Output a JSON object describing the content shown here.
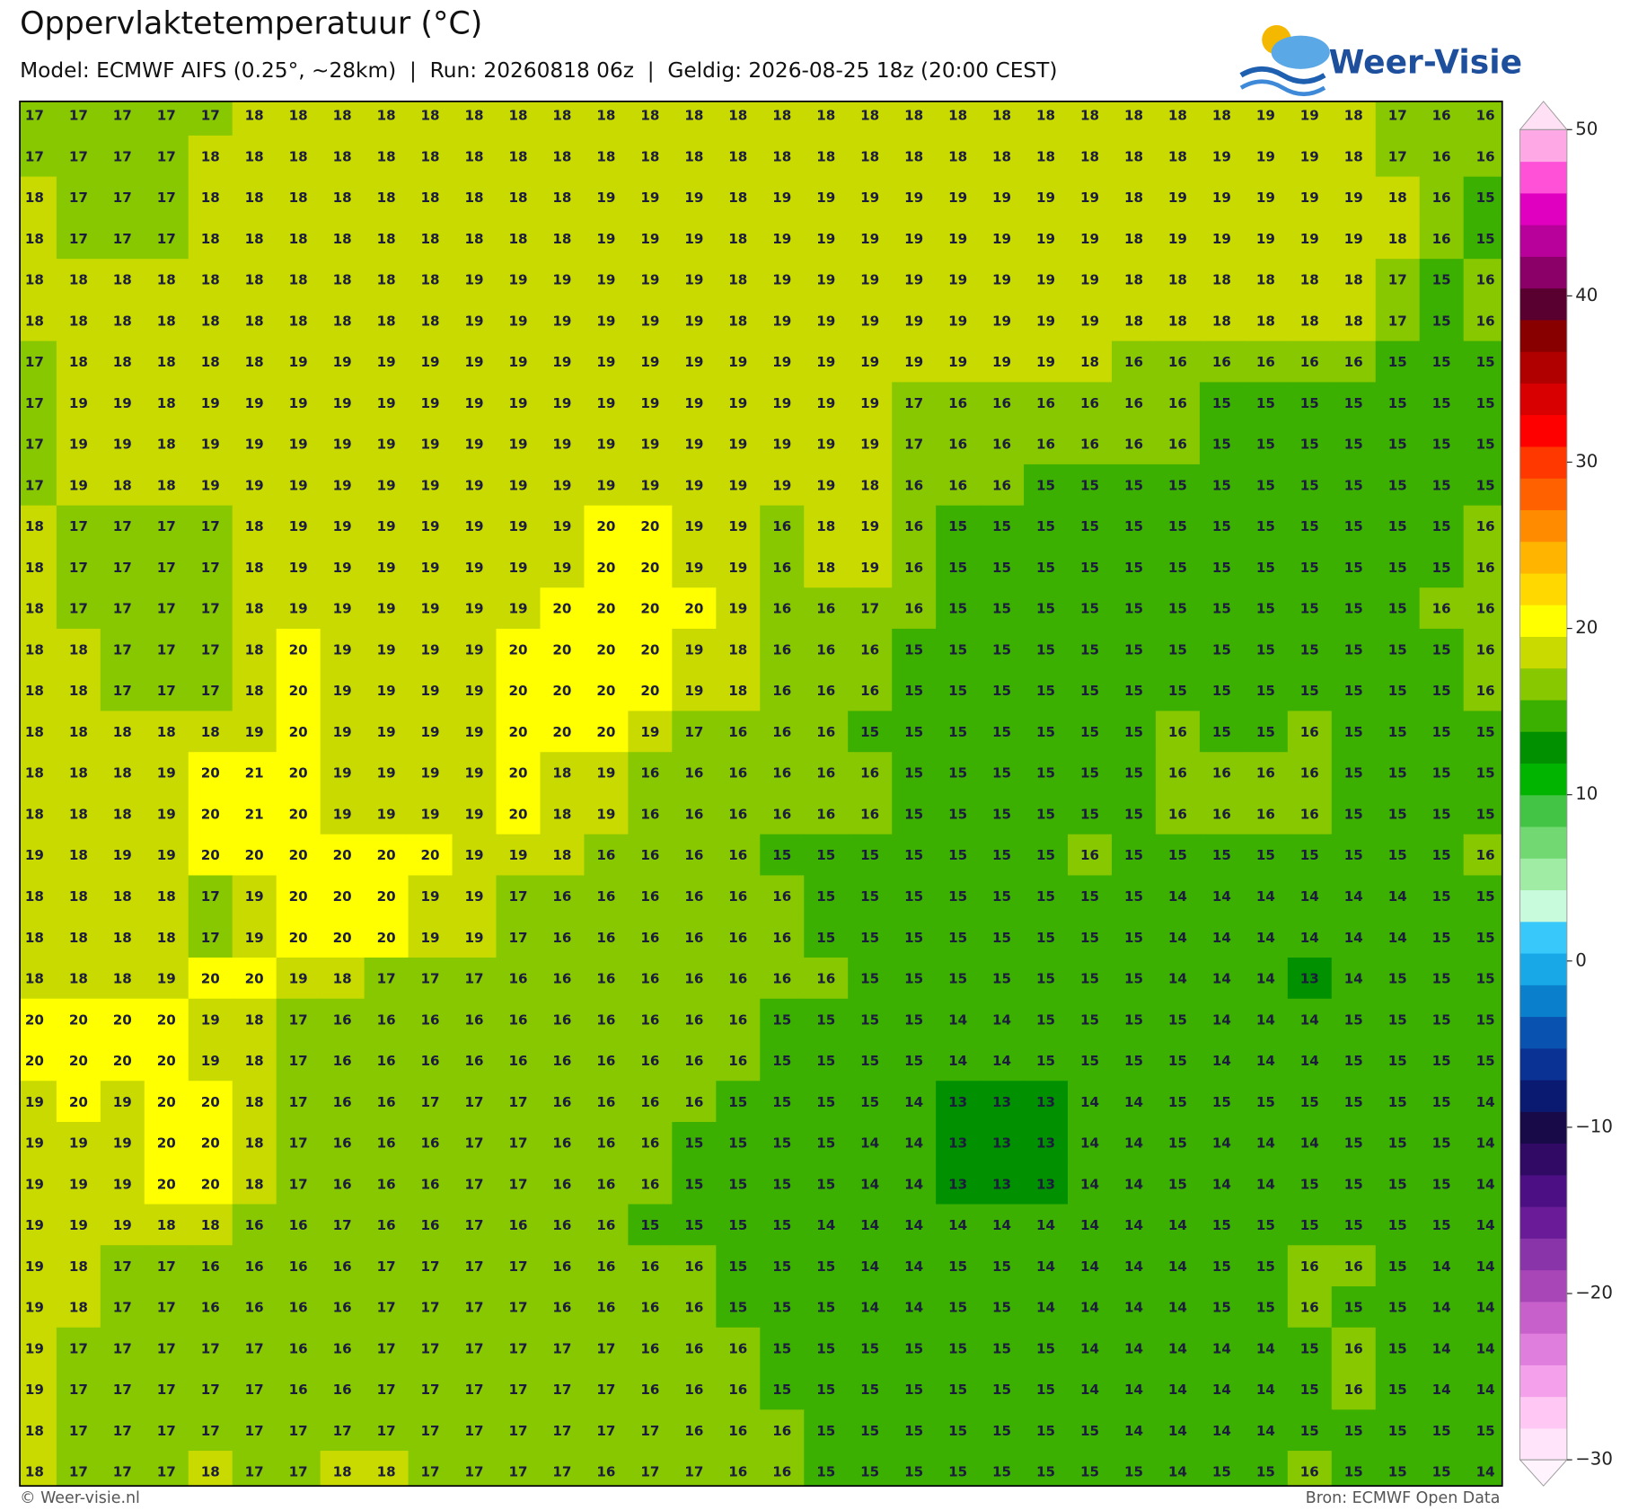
{
  "header": {
    "title": "Oppervlaktetemperatuur (°C)",
    "subtitle": "Model: ECMWF AIFS (0.25°, ~28km)  |  Run: 20260818 06z  |  Geldig: 2026-08-25 18z (20:00 CEST)",
    "logo": "Weer-Visie"
  },
  "chart_data": {
    "type": "heatmap",
    "values": [
      [
        17,
        17,
        17,
        17,
        17,
        18,
        18,
        18,
        18,
        18,
        18,
        18,
        18,
        18,
        18,
        18,
        18,
        18,
        18,
        18,
        18,
        18,
        18,
        18,
        18,
        18,
        18,
        18,
        19,
        19,
        18,
        17,
        16,
        16
      ],
      [
        17,
        17,
        17,
        17,
        18,
        18,
        18,
        18,
        18,
        18,
        18,
        18,
        18,
        18,
        18,
        18,
        18,
        18,
        18,
        18,
        18,
        18,
        18,
        18,
        18,
        18,
        18,
        19,
        19,
        19,
        18,
        17,
        16,
        16
      ],
      [
        18,
        17,
        17,
        17,
        18,
        18,
        18,
        18,
        18,
        18,
        18,
        18,
        18,
        19,
        19,
        19,
        18,
        19,
        19,
        19,
        19,
        19,
        19,
        19,
        19,
        18,
        19,
        19,
        19,
        19,
        19,
        18,
        16,
        15
      ],
      [
        18,
        17,
        17,
        17,
        18,
        18,
        18,
        18,
        18,
        18,
        18,
        18,
        18,
        19,
        19,
        19,
        18,
        19,
        19,
        19,
        19,
        19,
        19,
        19,
        19,
        18,
        19,
        19,
        19,
        19,
        19,
        18,
        16,
        15
      ],
      [
        18,
        18,
        18,
        18,
        18,
        18,
        18,
        18,
        18,
        18,
        19,
        19,
        19,
        19,
        19,
        19,
        18,
        19,
        19,
        19,
        19,
        19,
        19,
        19,
        19,
        18,
        18,
        18,
        18,
        18,
        18,
        17,
        15,
        16
      ],
      [
        18,
        18,
        18,
        18,
        18,
        18,
        18,
        18,
        18,
        18,
        19,
        19,
        19,
        19,
        19,
        19,
        18,
        19,
        19,
        19,
        19,
        19,
        19,
        19,
        19,
        18,
        18,
        18,
        18,
        18,
        18,
        17,
        15,
        16
      ],
      [
        17,
        18,
        18,
        18,
        18,
        18,
        19,
        19,
        19,
        19,
        19,
        19,
        19,
        19,
        19,
        19,
        19,
        19,
        19,
        19,
        19,
        19,
        19,
        19,
        18,
        16,
        16,
        16,
        16,
        16,
        16,
        15,
        15,
        15
      ],
      [
        17,
        19,
        19,
        18,
        19,
        19,
        19,
        19,
        19,
        19,
        19,
        19,
        19,
        19,
        19,
        19,
        19,
        19,
        19,
        19,
        17,
        16,
        16,
        16,
        16,
        16,
        16,
        15,
        15,
        15,
        15,
        15,
        15,
        15
      ],
      [
        17,
        19,
        19,
        18,
        19,
        19,
        19,
        19,
        19,
        19,
        19,
        19,
        19,
        19,
        19,
        19,
        19,
        19,
        19,
        19,
        17,
        16,
        16,
        16,
        16,
        16,
        16,
        15,
        15,
        15,
        15,
        15,
        15,
        15
      ],
      [
        17,
        19,
        18,
        18,
        19,
        19,
        19,
        19,
        19,
        19,
        19,
        19,
        19,
        19,
        19,
        19,
        19,
        19,
        19,
        18,
        16,
        16,
        16,
        15,
        15,
        15,
        15,
        15,
        15,
        15,
        15,
        15,
        15,
        15
      ],
      [
        18,
        17,
        17,
        17,
        17,
        18,
        19,
        19,
        19,
        19,
        19,
        19,
        19,
        20,
        20,
        19,
        19,
        16,
        18,
        19,
        16,
        15,
        15,
        15,
        15,
        15,
        15,
        15,
        15,
        15,
        15,
        15,
        15,
        16
      ],
      [
        18,
        17,
        17,
        17,
        17,
        18,
        19,
        19,
        19,
        19,
        19,
        19,
        19,
        20,
        20,
        19,
        19,
        16,
        18,
        19,
        16,
        15,
        15,
        15,
        15,
        15,
        15,
        15,
        15,
        15,
        15,
        15,
        15,
        16
      ],
      [
        18,
        17,
        17,
        17,
        17,
        18,
        19,
        19,
        19,
        19,
        19,
        19,
        20,
        20,
        20,
        20,
        19,
        16,
        16,
        17,
        16,
        15,
        15,
        15,
        15,
        15,
        15,
        15,
        15,
        15,
        15,
        15,
        16,
        16
      ],
      [
        18,
        18,
        17,
        17,
        17,
        18,
        20,
        19,
        19,
        19,
        19,
        20,
        20,
        20,
        20,
        19,
        18,
        16,
        16,
        16,
        15,
        15,
        15,
        15,
        15,
        15,
        15,
        15,
        15,
        15,
        15,
        15,
        15,
        16
      ],
      [
        18,
        18,
        17,
        17,
        17,
        18,
        20,
        19,
        19,
        19,
        19,
        20,
        20,
        20,
        20,
        19,
        18,
        16,
        16,
        16,
        15,
        15,
        15,
        15,
        15,
        15,
        15,
        15,
        15,
        15,
        15,
        15,
        15,
        16
      ],
      [
        18,
        18,
        18,
        18,
        18,
        19,
        20,
        19,
        19,
        19,
        19,
        20,
        20,
        20,
        19,
        17,
        16,
        16,
        16,
        15,
        15,
        15,
        15,
        15,
        15,
        15,
        16,
        15,
        15,
        16,
        15,
        15,
        15,
        15
      ],
      [
        18,
        18,
        18,
        19,
        20,
        21,
        20,
        19,
        19,
        19,
        19,
        20,
        18,
        19,
        16,
        16,
        16,
        16,
        16,
        16,
        15,
        15,
        15,
        15,
        15,
        15,
        16,
        16,
        16,
        16,
        15,
        15,
        15,
        15
      ],
      [
        18,
        18,
        18,
        19,
        20,
        21,
        20,
        19,
        19,
        19,
        19,
        20,
        18,
        19,
        16,
        16,
        16,
        16,
        16,
        16,
        15,
        15,
        15,
        15,
        15,
        15,
        16,
        16,
        16,
        16,
        15,
        15,
        15,
        15
      ],
      [
        19,
        18,
        19,
        19,
        20,
        20,
        20,
        20,
        20,
        20,
        19,
        19,
        18,
        16,
        16,
        16,
        16,
        15,
        15,
        15,
        15,
        15,
        15,
        15,
        16,
        15,
        15,
        15,
        15,
        15,
        15,
        15,
        15,
        16
      ],
      [
        18,
        18,
        18,
        18,
        17,
        19,
        20,
        20,
        20,
        19,
        19,
        17,
        16,
        16,
        16,
        16,
        16,
        16,
        15,
        15,
        15,
        15,
        15,
        15,
        15,
        15,
        14,
        14,
        14,
        14,
        14,
        14,
        15,
        15
      ],
      [
        18,
        18,
        18,
        18,
        17,
        19,
        20,
        20,
        20,
        19,
        19,
        17,
        16,
        16,
        16,
        16,
        16,
        16,
        15,
        15,
        15,
        15,
        15,
        15,
        15,
        15,
        14,
        14,
        14,
        14,
        14,
        14,
        15,
        15
      ],
      [
        18,
        18,
        18,
        19,
        20,
        20,
        19,
        18,
        17,
        17,
        17,
        16,
        16,
        16,
        16,
        16,
        16,
        16,
        16,
        15,
        15,
        15,
        15,
        15,
        15,
        15,
        14,
        14,
        14,
        13,
        14,
        15,
        15,
        15
      ],
      [
        20,
        20,
        20,
        20,
        19,
        18,
        17,
        16,
        16,
        16,
        16,
        16,
        16,
        16,
        16,
        16,
        16,
        15,
        15,
        15,
        15,
        14,
        14,
        15,
        15,
        15,
        15,
        14,
        14,
        14,
        15,
        15,
        15,
        15
      ],
      [
        20,
        20,
        20,
        20,
        19,
        18,
        17,
        16,
        16,
        16,
        16,
        16,
        16,
        16,
        16,
        16,
        16,
        15,
        15,
        15,
        15,
        14,
        14,
        15,
        15,
        15,
        15,
        14,
        14,
        14,
        15,
        15,
        15,
        15
      ],
      [
        19,
        20,
        19,
        20,
        20,
        18,
        17,
        16,
        16,
        17,
        17,
        17,
        16,
        16,
        16,
        16,
        15,
        15,
        15,
        15,
        14,
        13,
        13,
        13,
        14,
        14,
        15,
        15,
        15,
        15,
        15,
        15,
        15,
        14
      ],
      [
        19,
        19,
        19,
        20,
        20,
        18,
        17,
        16,
        16,
        16,
        17,
        17,
        16,
        16,
        16,
        15,
        15,
        15,
        15,
        14,
        14,
        13,
        13,
        13,
        14,
        14,
        15,
        14,
        14,
        14,
        15,
        15,
        15,
        14
      ],
      [
        19,
        19,
        19,
        20,
        20,
        18,
        17,
        16,
        16,
        16,
        17,
        17,
        16,
        16,
        16,
        15,
        15,
        15,
        15,
        14,
        14,
        13,
        13,
        13,
        14,
        14,
        15,
        14,
        14,
        15,
        15,
        15,
        15,
        14
      ],
      [
        19,
        19,
        19,
        18,
        18,
        16,
        16,
        17,
        16,
        16,
        17,
        16,
        16,
        16,
        15,
        15,
        15,
        15,
        14,
        14,
        14,
        14,
        14,
        14,
        14,
        14,
        14,
        15,
        15,
        15,
        15,
        15,
        15,
        14
      ],
      [
        19,
        18,
        17,
        17,
        16,
        16,
        16,
        16,
        17,
        17,
        17,
        17,
        16,
        16,
        16,
        16,
        15,
        15,
        15,
        14,
        14,
        15,
        15,
        14,
        14,
        14,
        14,
        15,
        15,
        16,
        16,
        15,
        14,
        14
      ],
      [
        19,
        18,
        17,
        17,
        16,
        16,
        16,
        16,
        17,
        17,
        17,
        17,
        16,
        16,
        16,
        16,
        15,
        15,
        15,
        14,
        14,
        15,
        15,
        14,
        14,
        14,
        14,
        15,
        15,
        16,
        15,
        15,
        14,
        14
      ],
      [
        19,
        17,
        17,
        17,
        17,
        17,
        16,
        16,
        17,
        17,
        17,
        17,
        17,
        17,
        16,
        16,
        16,
        15,
        15,
        15,
        15,
        15,
        15,
        15,
        14,
        14,
        14,
        14,
        14,
        15,
        16,
        15,
        14,
        14
      ],
      [
        19,
        17,
        17,
        17,
        17,
        17,
        16,
        16,
        17,
        17,
        17,
        17,
        17,
        17,
        16,
        16,
        16,
        15,
        15,
        15,
        15,
        15,
        15,
        15,
        14,
        14,
        14,
        14,
        14,
        15,
        16,
        15,
        14,
        14
      ],
      [
        18,
        17,
        17,
        17,
        17,
        17,
        17,
        17,
        17,
        17,
        17,
        17,
        17,
        17,
        17,
        16,
        16,
        16,
        15,
        15,
        15,
        15,
        15,
        15,
        15,
        14,
        14,
        14,
        14,
        15,
        15,
        15,
        15,
        15
      ],
      [
        18,
        17,
        17,
        17,
        18,
        17,
        17,
        18,
        18,
        17,
        17,
        17,
        17,
        16,
        17,
        17,
        16,
        16,
        15,
        15,
        15,
        15,
        15,
        15,
        15,
        15,
        14,
        15,
        15,
        16,
        15,
        15,
        15,
        14
      ]
    ],
    "clim": [
      -30,
      50
    ],
    "cticks": [
      50,
      40,
      30,
      20,
      10,
      0,
      {
        "value": -10,
        "label": "−10"
      },
      {
        "value": -20,
        "label": "−20"
      },
      {
        "value": -30,
        "label": "−30"
      }
    ],
    "colors": [
      "#ffe4fa",
      "#ffc8f4",
      "#f4a0ea",
      "#e07ede",
      "#c860cc",
      "#a846b8",
      "#8a34aa",
      "#6a1c98",
      "#4c1084",
      "#300a64",
      "#180a48",
      "#0a1a70",
      "#0a3294",
      "#0a52b0",
      "#0a80cc",
      "#18a8e8",
      "#38c8fa",
      "#c8fadc",
      "#a0eca4",
      "#72d872",
      "#44c444",
      "#00b400",
      "#009000",
      "#3cb000",
      "#88c800",
      "#c8da00",
      "#ffff00",
      "#ffd800",
      "#ffb400",
      "#ff8c00",
      "#ff6000",
      "#ff3800",
      "#ff0000",
      "#d80000",
      "#b00000",
      "#880000",
      "#5a0030",
      "#8a0068",
      "#b8009a",
      "#e000c0",
      "#ff50d8",
      "#ffa8e6"
    ],
    "extend_colors": [
      "#fff4fd",
      "#ffe0f4"
    ]
  },
  "footer": {
    "left": "© Weer-visie.nl",
    "right": "Bron: ECMWF Open Data"
  }
}
